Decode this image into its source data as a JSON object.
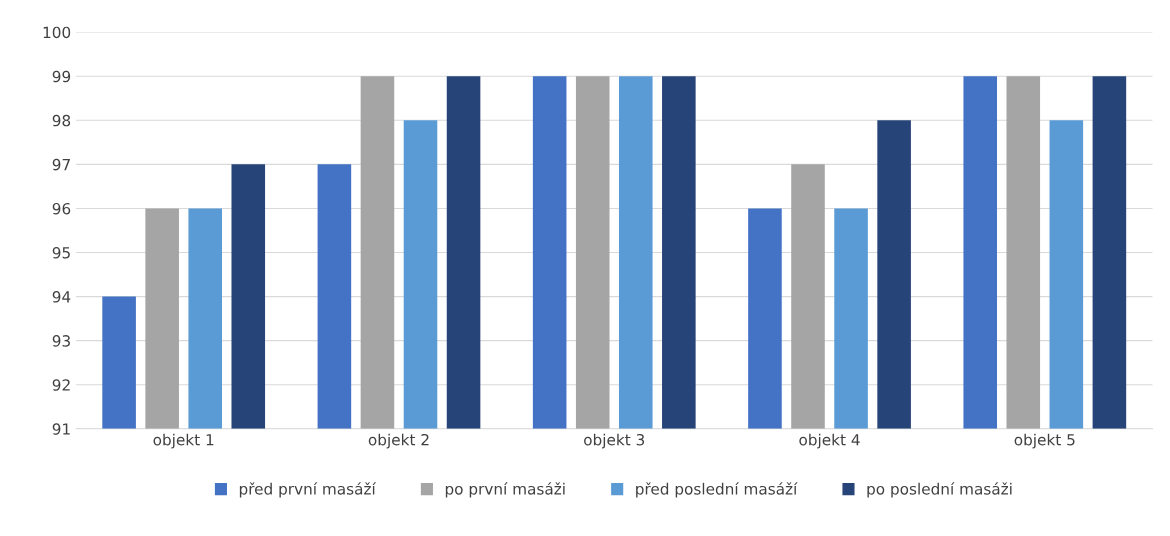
{
  "chart_data": {
    "type": "bar",
    "categories": [
      "objekt 1",
      "objekt 2",
      "objekt 3",
      "objekt 4",
      "objekt 5"
    ],
    "series": [
      {
        "name": "před první masáží",
        "color": "#4472c4",
        "values": [
          94,
          97,
          99,
          96,
          99
        ]
      },
      {
        "name": "po první masáži",
        "color": "#a5a5a5",
        "values": [
          96,
          99,
          99,
          97,
          99
        ]
      },
      {
        "name": "před poslední masáží",
        "color": "#5b9bd5",
        "values": [
          96,
          98,
          99,
          96,
          98
        ]
      },
      {
        "name": "po poslední masáži",
        "color": "#264478",
        "values": [
          97,
          99,
          99,
          98,
          99
        ]
      }
    ],
    "ylim": [
      91,
      100
    ],
    "yticks": [
      91,
      92,
      93,
      94,
      95,
      96,
      97,
      98,
      99,
      100
    ],
    "grid": "y",
    "legend": "bottom"
  }
}
